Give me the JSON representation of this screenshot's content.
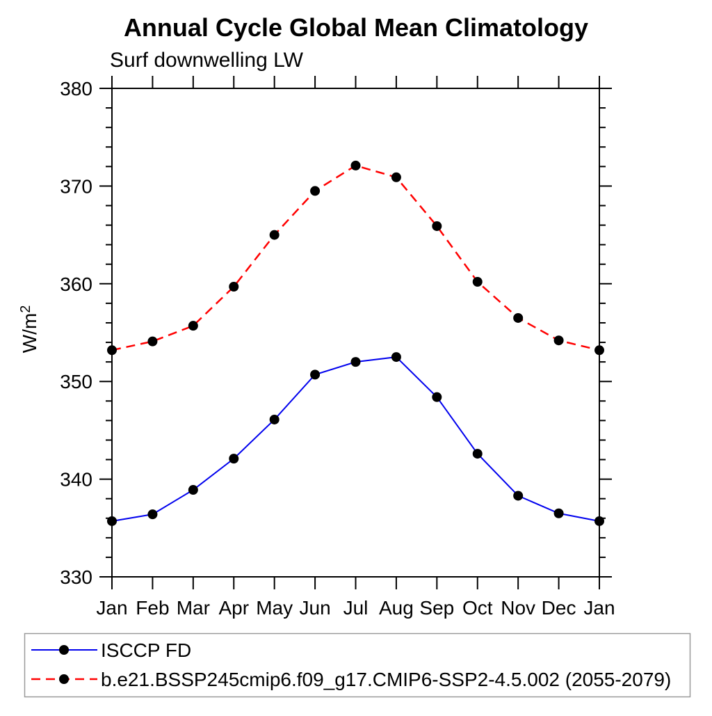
{
  "title": "Annual Cycle Global Mean Climatology",
  "chart_data": {
    "type": "line",
    "title": "Annual Cycle Global Mean Climatology",
    "subtitle": "Surf downwelling LW",
    "ylabel": "W/m²",
    "ylabel_base": "W/m",
    "ylabel_sup": "2",
    "x_categories": [
      "Jan",
      "Feb",
      "Mar",
      "Apr",
      "May",
      "Jun",
      "Jul",
      "Aug",
      "Sep",
      "Oct",
      "Nov",
      "Dec",
      "Jan"
    ],
    "ylim": [
      330,
      380
    ],
    "ytick_major": [
      330,
      340,
      350,
      360,
      370,
      380
    ],
    "ytick_minor_step": 2,
    "grid": false,
    "legend_position": "bottom-left-box",
    "marker_color": "#000000",
    "series": [
      {
        "name": "ISCCP FD",
        "color": "#0000ee",
        "style": "solid",
        "marker": "circle",
        "values": [
          335.7,
          336.4,
          338.9,
          342.1,
          346.1,
          350.7,
          352.0,
          352.5,
          348.4,
          342.6,
          338.3,
          336.5,
          335.7
        ]
      },
      {
        "name": "b.e21.BSSP245cmip6.f09_g17.CMIP6-SSP2-4.5.002 (2055-2079)",
        "color": "#ff0000",
        "style": "dashed",
        "marker": "circle",
        "values": [
          353.2,
          354.1,
          355.7,
          359.7,
          365.0,
          369.5,
          372.1,
          370.9,
          365.9,
          360.2,
          356.5,
          354.2,
          353.2
        ]
      }
    ]
  }
}
